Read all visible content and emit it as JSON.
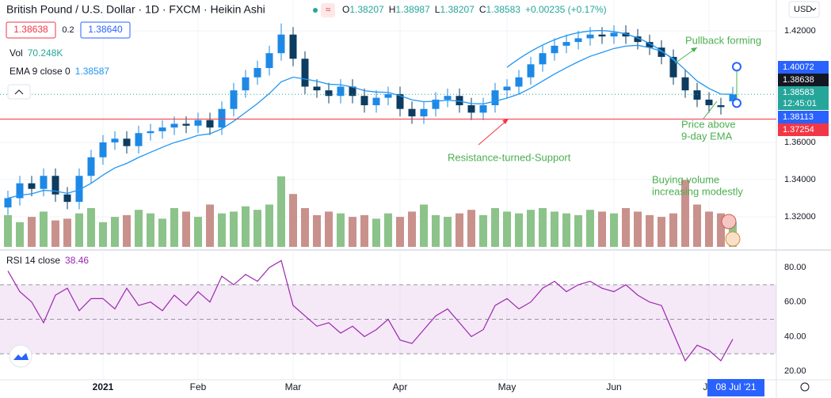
{
  "header": {
    "symbol": "British Pound / U.S. Dollar · 1D · FXCM · Heikin Ashi",
    "currency": "USD",
    "bid": "1.38638",
    "spread": "0.2",
    "ask": "1.38640"
  },
  "chart_data": [
    {
      "type": "candlestick",
      "ohlc": [
        {
          "name": "O",
          "value": 1.38207
        },
        {
          "name": "H",
          "value": 1.38987
        },
        {
          "name": "L",
          "value": 1.38207
        },
        {
          "name": "C",
          "value": 1.38583
        }
      ],
      "change": "+0.00235 (+0.17%)",
      "categories": [
        null,
        null,
        null,
        null,
        null,
        null,
        null,
        null,
        null,
        null,
        null,
        null,
        null,
        null,
        null,
        null,
        null,
        null,
        null,
        null,
        null,
        null,
        null,
        null,
        null,
        null,
        null,
        null,
        null,
        null,
        null,
        null,
        null,
        null,
        null,
        null,
        null,
        null,
        null,
        null,
        null,
        null,
        null,
        null,
        null,
        null,
        null,
        null,
        null,
        null,
        null,
        null,
        null,
        null,
        null,
        null,
        null,
        null,
        null,
        null,
        null,
        null
      ],
      "open": [
        1.325,
        1.33,
        1.338,
        1.335,
        1.342,
        1.332,
        1.328,
        1.342,
        1.352,
        1.36,
        1.362,
        1.358,
        1.365,
        1.366,
        1.368,
        1.37,
        1.369,
        1.372,
        1.368,
        1.378,
        1.388,
        1.395,
        1.4,
        1.408,
        1.418,
        1.405,
        1.39,
        1.388,
        1.385,
        1.39,
        1.385,
        1.38,
        1.384,
        1.386,
        1.378,
        1.374,
        1.378,
        1.383,
        1.385,
        1.38,
        1.376,
        1.38,
        1.388,
        1.39,
        1.395,
        1.402,
        1.408,
        1.412,
        1.414,
        1.416,
        1.418,
        1.417,
        1.419,
        1.417,
        1.414,
        1.411,
        1.406,
        1.395,
        1.388,
        1.383,
        1.38,
        1.38207
      ],
      "high": [
        1.334,
        1.342,
        1.342,
        1.346,
        1.346,
        1.336,
        1.346,
        1.356,
        1.364,
        1.366,
        1.366,
        1.369,
        1.37,
        1.372,
        1.374,
        1.374,
        1.376,
        1.376,
        1.382,
        1.392,
        1.399,
        1.404,
        1.412,
        1.424,
        1.422,
        1.409,
        1.394,
        1.392,
        1.394,
        1.394,
        1.389,
        1.388,
        1.39,
        1.39,
        1.382,
        1.382,
        1.387,
        1.389,
        1.389,
        1.384,
        1.384,
        1.392,
        1.394,
        1.399,
        1.406,
        1.412,
        1.416,
        1.418,
        1.42,
        1.422,
        1.422,
        1.423,
        1.423,
        1.421,
        1.418,
        1.415,
        1.41,
        1.399,
        1.392,
        1.387,
        1.384,
        1.38987
      ],
      "low": [
        1.321,
        1.326,
        1.331,
        1.331,
        1.328,
        1.324,
        1.324,
        1.338,
        1.348,
        1.356,
        1.354,
        1.354,
        1.361,
        1.362,
        1.364,
        1.365,
        1.365,
        1.364,
        1.364,
        1.374,
        1.384,
        1.391,
        1.396,
        1.404,
        1.401,
        1.386,
        1.384,
        1.381,
        1.381,
        1.381,
        1.376,
        1.376,
        1.38,
        1.374,
        1.37,
        1.37,
        1.374,
        1.379,
        1.376,
        1.372,
        1.372,
        1.376,
        1.384,
        1.386,
        1.391,
        1.398,
        1.404,
        1.408,
        1.41,
        1.412,
        1.413,
        1.413,
        1.413,
        1.41,
        1.407,
        1.402,
        1.391,
        1.384,
        1.379,
        1.376,
        1.375,
        1.38207
      ],
      "close": [
        1.33,
        1.338,
        1.335,
        1.342,
        1.332,
        1.328,
        1.342,
        1.352,
        1.36,
        1.362,
        1.358,
        1.365,
        1.366,
        1.368,
        1.37,
        1.369,
        1.372,
        1.368,
        1.378,
        1.388,
        1.395,
        1.4,
        1.408,
        1.418,
        1.405,
        1.39,
        1.388,
        1.385,
        1.39,
        1.385,
        1.38,
        1.384,
        1.386,
        1.378,
        1.374,
        1.378,
        1.383,
        1.385,
        1.38,
        1.376,
        1.38,
        1.388,
        1.39,
        1.395,
        1.402,
        1.408,
        1.412,
        1.414,
        1.416,
        1.418,
        1.417,
        1.419,
        1.417,
        1.414,
        1.411,
        1.406,
        1.395,
        1.388,
        1.383,
        1.38,
        1.379,
        1.38583
      ],
      "up_color": "#1e88e5",
      "down_color": "#0d3c61",
      "ylim": [
        1.3038,
        1.4366
      ],
      "yticks": [
        {
          "value": 1.42,
          "label": "1.42000"
        },
        {
          "value": 1.36,
          "label": "1.36000"
        },
        {
          "value": 1.34,
          "label": "1.34000"
        },
        {
          "value": 1.32,
          "label": "1.32000"
        }
      ],
      "xticks": [
        {
          "value": 8,
          "label": "2021"
        },
        {
          "value": 16,
          "label": "Feb"
        },
        {
          "value": 24,
          "label": "Mar"
        },
        {
          "value": 33,
          "label": "Apr"
        },
        {
          "value": 42,
          "label": "May"
        },
        {
          "value": 51,
          "label": "Jun"
        },
        {
          "value": 59,
          "label": "Jul"
        }
      ],
      "grid": true,
      "ema": {
        "name": "EMA 9 close 0",
        "color": "#2196f3",
        "values": [
          1.33,
          1.3316,
          1.3323,
          1.3342,
          1.3338,
          1.3326,
          1.3345,
          1.338,
          1.3424,
          1.3463,
          1.3487,
          1.3519,
          1.3547,
          1.3574,
          1.3599,
          1.3617,
          1.3638,
          1.3646,
          1.3673,
          1.3714,
          1.3761,
          1.3809,
          1.3863,
          1.3926,
          1.3951,
          1.3941,
          1.3929,
          1.3913,
          1.391,
          1.3898,
          1.3878,
          1.3871,
          1.3869,
          1.3851,
          1.3829,
          1.3819,
          1.3821,
          1.3827,
          1.3822,
          1.3809,
          1.3807,
          1.3822,
          1.3838,
          1.386,
          1.3892,
          1.393,
          1.3968,
          1.4002,
          1.4034,
          1.4063,
          1.4084,
          1.4105,
          1.4118,
          1.4122,
          1.411,
          1.409,
          1.405,
          1.399,
          1.393,
          1.389,
          1.386,
          1.38587
        ]
      },
      "volume": {
        "name": "Vol",
        "current_label": "70.248K",
        "up_color": "#8cc38a",
        "down_color": "#c9918c",
        "vlim": [
          0,
          700
        ],
        "values": [
          90,
          70,
          85,
          100,
          75,
          80,
          95,
          110,
          70,
          85,
          90,
          105,
          95,
          80,
          110,
          100,
          85,
          120,
          95,
          100,
          115,
          105,
          120,
          200,
          150,
          110,
          90,
          100,
          95,
          85,
          90,
          80,
          95,
          85,
          100,
          120,
          90,
          85,
          95,
          105,
          90,
          110,
          100,
          95,
          105,
          110,
          100,
          95,
          90,
          105,
          100,
          95,
          110,
          100,
          90,
          85,
          95,
          190,
          120,
          100,
          95,
          70.248
        ]
      },
      "level": {
        "value": 1.37254,
        "color": "#f23645"
      },
      "current": {
        "value": 1.38583,
        "countdown": "12:45:01",
        "color": "#26a69a"
      },
      "price_labels": [
        {
          "value": 1.40072,
          "color": "#2962ff"
        },
        {
          "value": 1.38638,
          "color": "#131722"
        },
        {
          "value": 1.38113,
          "color": "#2962ff"
        }
      ],
      "annotations": [
        {
          "lines": [
            "Pullback forming"
          ],
          "color": "#4caf50"
        },
        {
          "lines": [
            "Resistance-turned-Support"
          ],
          "color": "#4caf50"
        },
        {
          "lines": [
            "Price above",
            "9-day EMA"
          ],
          "color": "#4caf50"
        },
        {
          "lines": [
            "Buying volume",
            "increasing modestly"
          ],
          "color": "#4caf50"
        }
      ],
      "date_label": "08 Jul '21"
    },
    {
      "type": "line",
      "title": "RSI 14 close",
      "color": "#9c27b0",
      "values": [
        78,
        66,
        60,
        48,
        64,
        68,
        55,
        62,
        62,
        56,
        68,
        58,
        60,
        55,
        64,
        58,
        66,
        60,
        75,
        70,
        76,
        72,
        80,
        84,
        58,
        52,
        46,
        48,
        42,
        46,
        40,
        44,
        50,
        38,
        36,
        44,
        52,
        56,
        48,
        40,
        44,
        58,
        62,
        56,
        60,
        68,
        72,
        66,
        70,
        72,
        68,
        66,
        70,
        64,
        60,
        58,
        42,
        26,
        35,
        32,
        26,
        38.46
      ],
      "ylim": [
        14.96,
        89.2
      ],
      "yticks": [
        {
          "value": 80,
          "label": "80.00"
        },
        {
          "value": 60,
          "label": "60.00"
        },
        {
          "value": 40,
          "label": "40.00"
        },
        {
          "value": 20,
          "label": "20.00"
        }
      ],
      "band": [
        30,
        70
      ],
      "midline": 50
    }
  ]
}
